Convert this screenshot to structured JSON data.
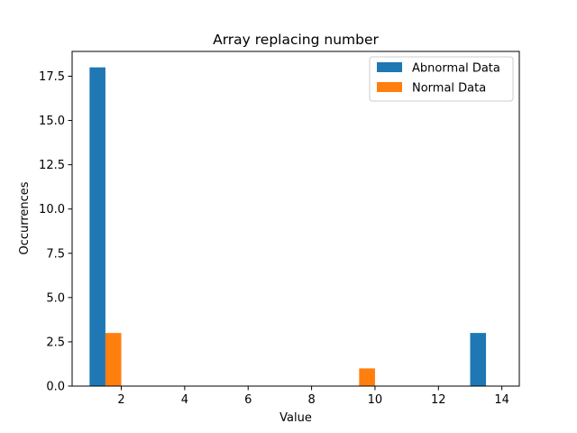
{
  "chart_data": {
    "type": "bar",
    "title": "Array replacing number",
    "xlabel": "Value",
    "ylabel": "Occurrences",
    "xlim": [
      0.45,
      14.55
    ],
    "ylim": [
      0,
      18.9
    ],
    "xticks": [
      2,
      4,
      6,
      8,
      10,
      12,
      14
    ],
    "yticks": [
      0.0,
      2.5,
      5.0,
      7.5,
      10.0,
      12.5,
      15.0,
      17.5
    ],
    "legend_position": "top-right",
    "grid": false,
    "series": [
      {
        "name": "Abnormal Data",
        "color": "#1f77b4",
        "bars": [
          {
            "x0": 1.0,
            "x1": 1.5,
            "value": 18
          },
          {
            "x0": 13.0,
            "x1": 13.5,
            "value": 3
          }
        ]
      },
      {
        "name": "Normal Data",
        "color": "#ff7f0e",
        "bars": [
          {
            "x0": 1.5,
            "x1": 2.0,
            "value": 3
          },
          {
            "x0": 9.5,
            "x1": 10.0,
            "value": 1
          }
        ]
      }
    ]
  }
}
